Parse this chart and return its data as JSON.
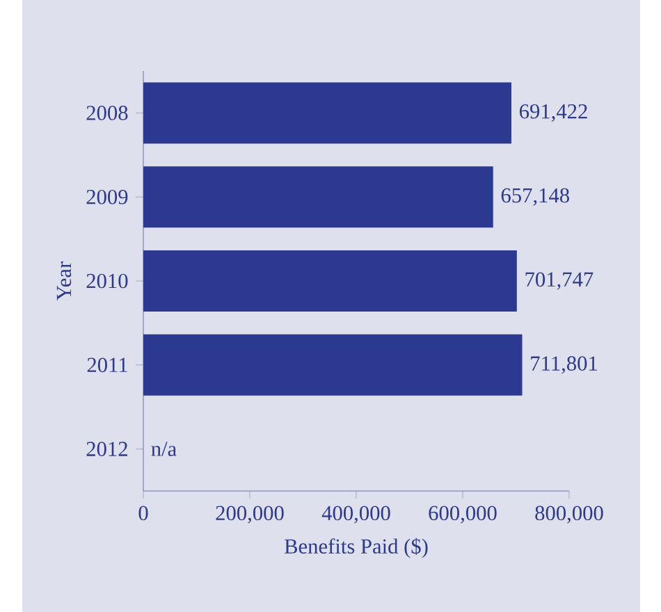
{
  "chart_data": {
    "type": "bar",
    "orientation": "horizontal",
    "xlabel": "Benefits Paid ($)",
    "ylabel": "Year",
    "categories": [
      "2008",
      "2009",
      "2010",
      "2011",
      "2012"
    ],
    "values": [
      691422,
      657148,
      701747,
      711801,
      null
    ],
    "value_labels": [
      "691,422",
      "657,148",
      "701,747",
      "711,801",
      "n/a"
    ],
    "color": "#2b3990",
    "xlim": [
      0,
      800000
    ],
    "xticks": [
      0,
      {
        "value": 200000,
        "label": "200,000"
      },
      {
        "value": 400000,
        "label": "400,000"
      },
      {
        "value": 600000,
        "label": "600,000"
      },
      {
        "value": 800000,
        "label": "800,000"
      }
    ]
  }
}
